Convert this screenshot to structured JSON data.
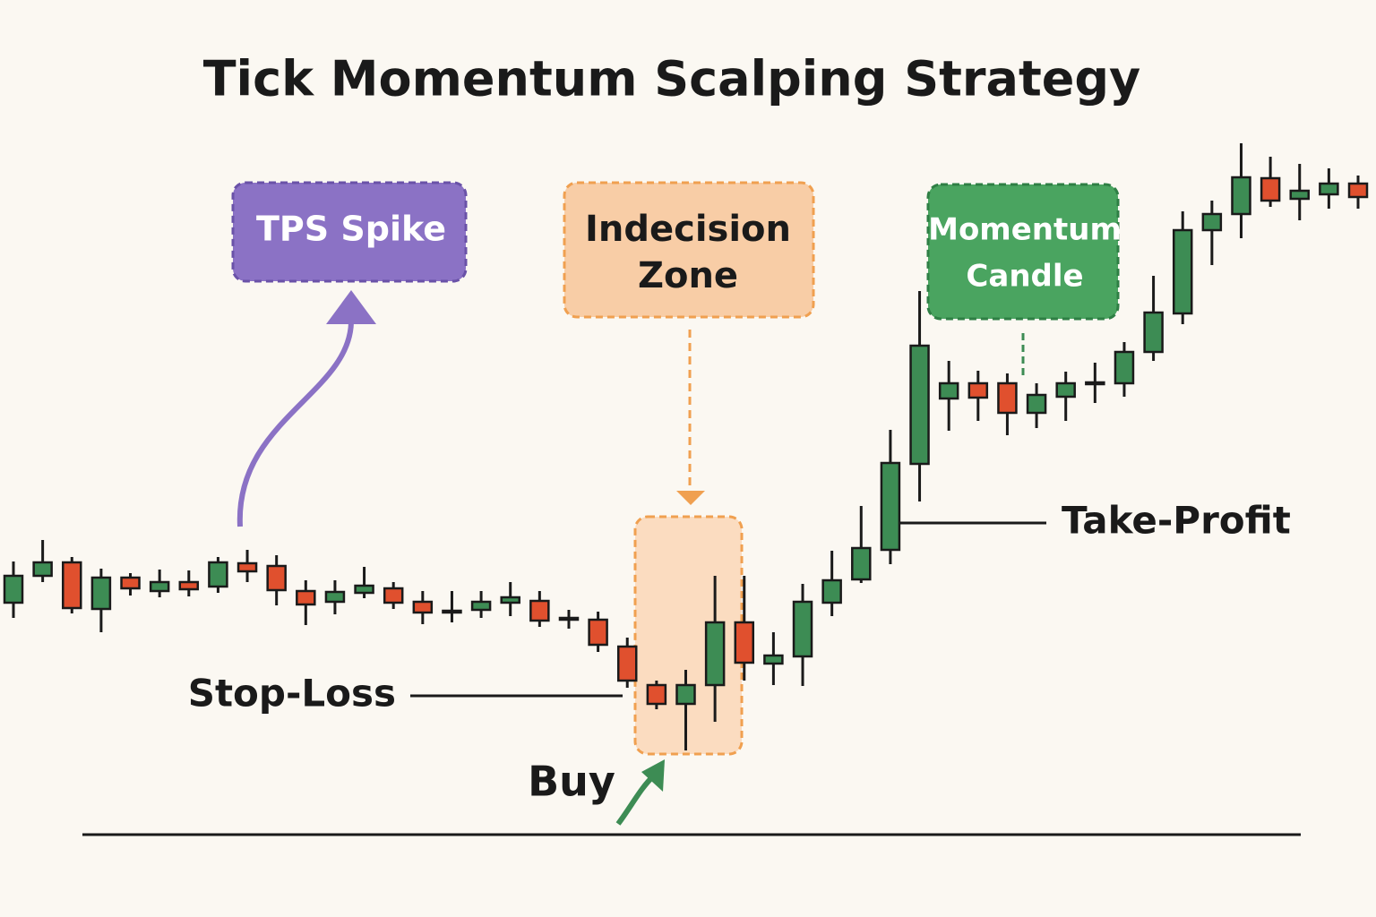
{
  "chart_data": {
    "type": "candlestick",
    "title": "Tick Momentum Scalping Strategy",
    "annotations": {
      "tps_spike": "TPS Spike",
      "indecision_zone": [
        "Indecision",
        "Zone"
      ],
      "momentum_candle": [
        "Momentum",
        "Candle"
      ],
      "take_profit": "Take-Profit",
      "stop_loss": "Stop-Loss",
      "buy": "Buy"
    },
    "open": [
      26.7,
      29.7,
      31.2,
      26.0,
      29.5,
      28.0,
      29.0,
      28.5,
      31.1,
      30.8,
      28.0,
      26.8,
      27.8,
      28.3,
      26.8,
      25.6,
      25.9,
      26.7,
      26.9,
      24.8,
      24.8,
      21.8,
      17.5,
      15.4,
      17.5,
      24.5,
      19.9,
      20.7,
      26.7,
      29.3,
      32.6,
      42.2,
      49.5,
      51.2,
      51.2,
      47.9,
      49.7,
      51.1,
      51.2,
      54.7,
      59.0,
      68.3,
      70.1,
      74.1,
      71.8,
      72.3,
      73.5
    ],
    "high": [
      31.3,
      33.7,
      31.8,
      30.5,
      30.0,
      30.4,
      30.3,
      31.8,
      32.6,
      32.0,
      29.2,
      29.2,
      30.7,
      29.0,
      28.0,
      28.0,
      28.0,
      29.0,
      28.0,
      25.9,
      25.7,
      22.8,
      18.0,
      19.2,
      29.7,
      29.7,
      23.4,
      28.8,
      32.5,
      37.5,
      46.0,
      61.5,
      53.7,
      52.6,
      52.3,
      51.2,
      52.5,
      53.5,
      55.8,
      63.2,
      70.4,
      71.6,
      78.0,
      76.5,
      75.7,
      75.2,
      74.4
    ],
    "low": [
      25.0,
      29.0,
      25.5,
      23.4,
      27.5,
      27.3,
      27.4,
      27.8,
      29.0,
      26.4,
      24.2,
      25.4,
      27.2,
      26.0,
      24.3,
      24.5,
      25.0,
      25.2,
      24.0,
      23.8,
      21.2,
      17.2,
      14.8,
      10.2,
      13.4,
      18.0,
      17.5,
      17.4,
      25.2,
      28.9,
      31.0,
      38.0,
      45.9,
      47.0,
      45.4,
      46.2,
      47.0,
      49.0,
      49.7,
      53.7,
      57.8,
      64.4,
      67.4,
      70.9,
      69.4,
      70.7,
      70.7
    ],
    "close": [
      29.7,
      31.2,
      26.1,
      29.5,
      28.3,
      29.0,
      28.2,
      31.2,
      30.2,
      28.1,
      26.5,
      27.9,
      28.6,
      26.7,
      25.6,
      25.8,
      26.8,
      27.3,
      24.7,
      25.0,
      22.0,
      18.0,
      15.4,
      17.5,
      24.5,
      20.0,
      20.8,
      26.8,
      29.2,
      32.8,
      42.3,
      55.4,
      51.2,
      49.6,
      47.9,
      49.9,
      51.2,
      51.3,
      54.7,
      59.1,
      68.3,
      70.1,
      74.2,
      71.6,
      72.7,
      73.5,
      72.0
    ],
    "up_color": "#3d8c54",
    "down_color": "#e0502e",
    "ylim": [
      0,
      80
    ]
  }
}
